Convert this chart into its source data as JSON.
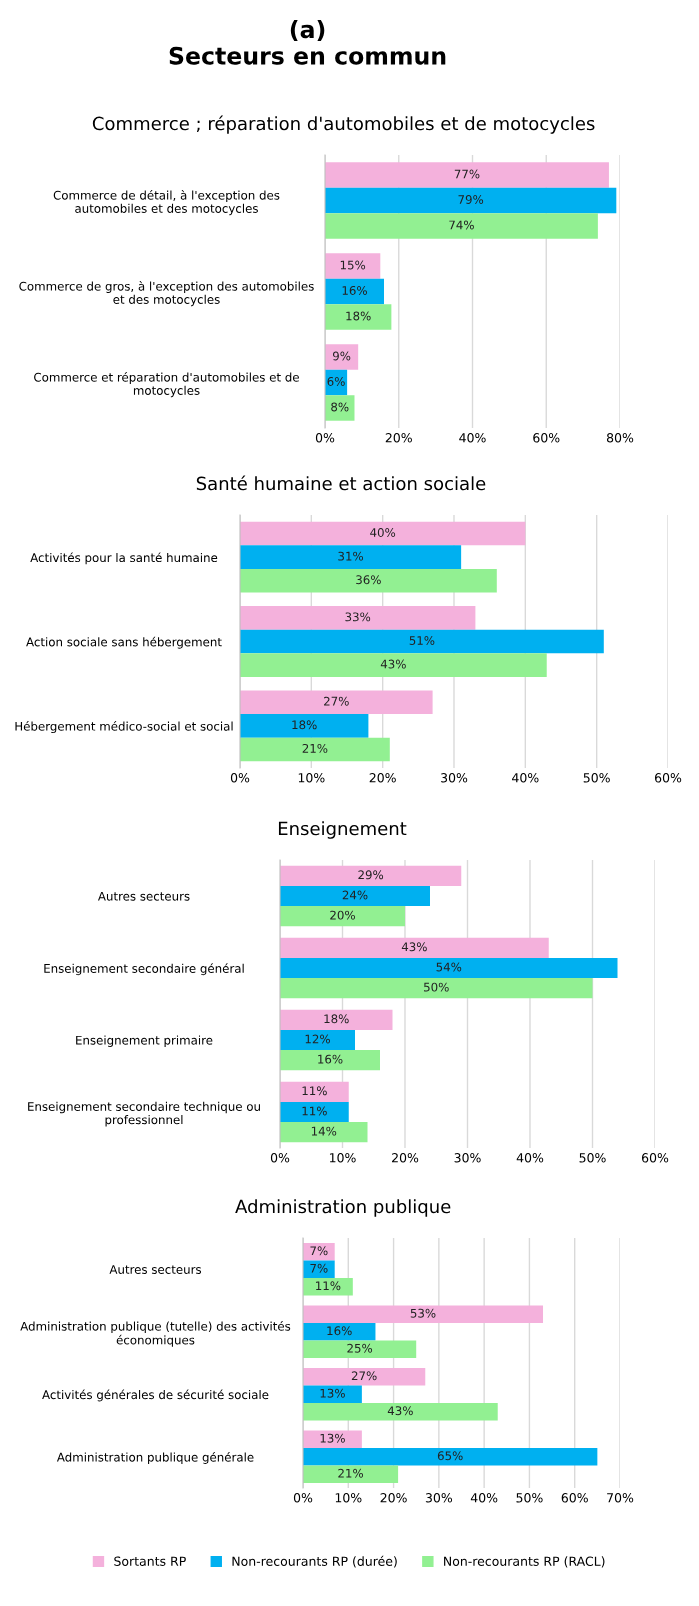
{
  "chart_data": [
    {
      "type": "bar",
      "orientation": "horizontal",
      "title": "(a)\nSecteurs en commun",
      "subtitle": "Commerce ; réparation d'automobiles et de motocycles",
      "categories": [
        "Commerce de détail, à l'exception des\nautomobiles et des motocycles",
        "Commerce de gros, à l'exception des automobiles\net des motocycles",
        "Commerce et réparation d'automobiles et de\nmotocycles"
      ],
      "series": [
        {
          "color": "#f4b1dc",
          "values": [
            77,
            15,
            9
          ],
          "value_labels": [
            "77%",
            "15%",
            "9%"
          ]
        },
        {
          "color": "#00b0f0",
          "values": [
            79,
            16,
            6
          ],
          "value_labels": [
            "79%",
            "16%",
            "6%"
          ]
        },
        {
          "color": "#92f092",
          "values": [
            74,
            18,
            8
          ],
          "value_labels": [
            "74%",
            "18%",
            "8%"
          ]
        }
      ],
      "xlim": [
        0,
        80
      ],
      "xticks": [
        {
          "value": 0,
          "label": "0%"
        },
        {
          "value": 20,
          "label": "20%"
        },
        {
          "value": 40,
          "label": "40%"
        },
        {
          "value": 60,
          "label": "60%"
        },
        {
          "value": 80,
          "label": "80%"
        }
      ],
      "grid": "x"
    },
    {
      "type": "bar",
      "orientation": "horizontal",
      "subtitle": "Santé humaine et action sociale",
      "categories": [
        "Activités pour la santé humaine",
        "Action sociale sans hébergement",
        "Hébergement médico-social et social"
      ],
      "series": [
        {
          "color": "#f4b1dc",
          "values": [
            40,
            33,
            27
          ],
          "value_labels": [
            "40%",
            "33%",
            "27%"
          ]
        },
        {
          "color": "#00b0f0",
          "values": [
            31,
            51,
            18
          ],
          "value_labels": [
            "31%",
            "51%",
            "18%"
          ]
        },
        {
          "color": "#92f092",
          "values": [
            36,
            43,
            21
          ],
          "value_labels": [
            "36%",
            "43%",
            "21%"
          ]
        }
      ],
      "xlim": [
        0,
        60
      ],
      "xticks": [
        {
          "value": 0,
          "label": "0%"
        },
        {
          "value": 10,
          "label": "10%"
        },
        {
          "value": 20,
          "label": "20%"
        },
        {
          "value": 30,
          "label": "30%"
        },
        {
          "value": 40,
          "label": "40%"
        },
        {
          "value": 50,
          "label": "50%"
        },
        {
          "value": 60,
          "label": "60%"
        }
      ],
      "grid": "x"
    },
    {
      "type": "bar",
      "orientation": "horizontal",
      "subtitle": "Enseignement",
      "categories": [
        "Autres secteurs",
        "Enseignement secondaire général",
        "Enseignement primaire",
        "Enseignement secondaire technique ou\nprofessionnel"
      ],
      "series": [
        {
          "color": "#f4b1dc",
          "values": [
            29,
            43,
            18,
            11
          ],
          "value_labels": [
            "29%",
            "43%",
            "18%",
            "11%"
          ]
        },
        {
          "color": "#00b0f0",
          "values": [
            24,
            54,
            12,
            11
          ],
          "value_labels": [
            "24%",
            "54%",
            "12%",
            "11%"
          ]
        },
        {
          "color": "#92f092",
          "values": [
            20,
            50,
            16,
            14
          ],
          "value_labels": [
            "20%",
            "50%",
            "16%",
            "14%"
          ]
        }
      ],
      "xlim": [
        0,
        60
      ],
      "xticks": [
        {
          "value": 0,
          "label": "0%"
        },
        {
          "value": 10,
          "label": "10%"
        },
        {
          "value": 20,
          "label": "20%"
        },
        {
          "value": 30,
          "label": "30%"
        },
        {
          "value": 40,
          "label": "40%"
        },
        {
          "value": 50,
          "label": "50%"
        },
        {
          "value": 60,
          "label": "60%"
        }
      ],
      "grid": "x"
    },
    {
      "type": "bar",
      "orientation": "horizontal",
      "subtitle": "Administration publique",
      "categories": [
        "Autres secteurs",
        "Administration publique (tutelle) des activités\néconomiques",
        "Activités générales de sécurité sociale",
        "Administration publique générale"
      ],
      "series": [
        {
          "name": "Sortants RP",
          "color": "#f4b1dc",
          "values": [
            7,
            53,
            27,
            13
          ],
          "value_labels": [
            "7%",
            "53%",
            "27%",
            "13%"
          ]
        },
        {
          "name": "Non-recourants RP (durée)",
          "color": "#00b0f0",
          "values": [
            7,
            16,
            13,
            65
          ],
          "value_labels": [
            "7%",
            "16%",
            "13%",
            "65%"
          ]
        },
        {
          "name": "Non-recourants RP (RACL)",
          "color": "#92f092",
          "values": [
            11,
            25,
            43,
            21
          ],
          "value_labels": [
            "11%",
            "25%",
            "43%",
            "21%"
          ]
        }
      ],
      "xlim": [
        0,
        70
      ],
      "xticks": [
        {
          "value": 0,
          "label": "0%"
        },
        {
          "value": 10,
          "label": "10%"
        },
        {
          "value": 20,
          "label": "20%"
        },
        {
          "value": 30,
          "label": "30%"
        },
        {
          "value": 40,
          "label": "40%"
        },
        {
          "value": 50,
          "label": "50%"
        },
        {
          "value": 60,
          "label": "60%"
        },
        {
          "value": 70,
          "label": "70%"
        }
      ],
      "grid": "x",
      "legend": "bottom"
    }
  ]
}
